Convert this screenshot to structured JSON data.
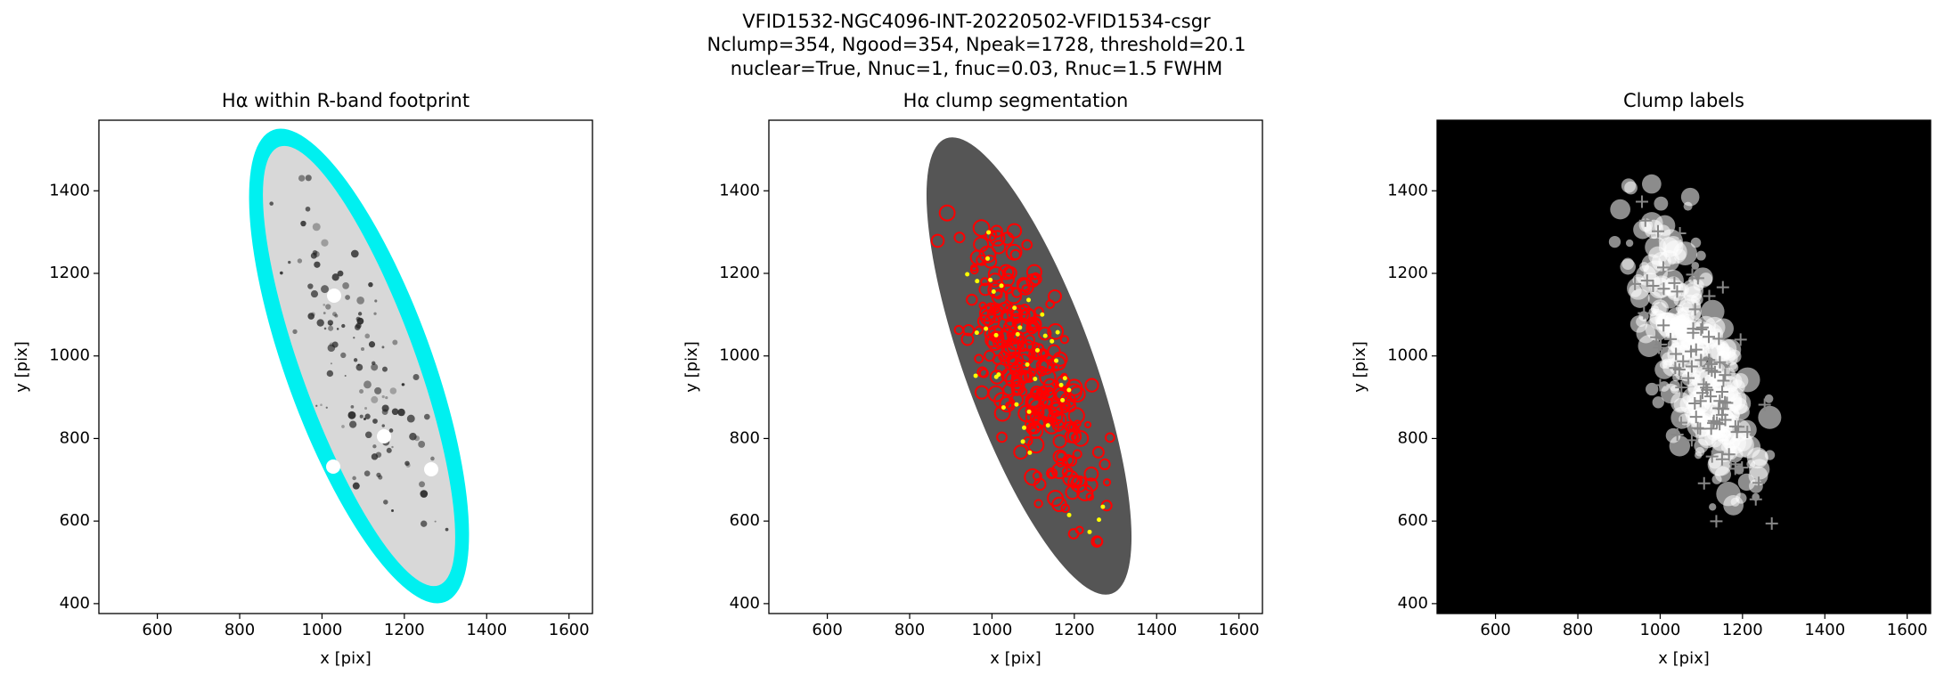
{
  "figure_title": [
    "VFID1532-NGC4096-INT-20220502-VFID1534-csgr",
    "Nclump=354, Ngood=354, Npeak=1728, threshold=20.1",
    "nuclear=True, Nnuc=1, fnuc=0.03, Rnuc=1.5 FWHM"
  ],
  "chart_data": [
    {
      "type": "image",
      "title": "Hα within R-band footprint",
      "x_label": "x [pix]",
      "y_label": "y [pix]",
      "xlim": [
        458,
        1657
      ],
      "ylim": [
        376,
        1571
      ],
      "xticks": [
        600,
        800,
        1000,
        1200,
        1400,
        1600
      ],
      "yticks": [
        400,
        600,
        800,
        1000,
        1200,
        1400
      ],
      "background": "#ffffff"
    },
    {
      "type": "image",
      "title": "Hα clump segmentation",
      "x_label": "x [pix]",
      "y_label": "y [pix]",
      "xlim": [
        458,
        1657
      ],
      "ylim": [
        376,
        1571
      ],
      "xticks": [
        600,
        800,
        1000,
        1200,
        1400,
        1600
      ],
      "yticks": [
        400,
        600,
        800,
        1000,
        1200,
        1400
      ],
      "background": "#ffffff"
    },
    {
      "type": "image",
      "title": "Clump labels",
      "x_label": "x [pix]",
      "y_label": "y [pix]",
      "xlim": [
        458,
        1657
      ],
      "ylim": [
        376,
        1571
      ],
      "xticks": [
        600,
        800,
        1000,
        1200,
        1400,
        1600
      ],
      "yticks": [
        400,
        600,
        800,
        1000,
        1200,
        1400
      ],
      "background": "#000000"
    }
  ]
}
